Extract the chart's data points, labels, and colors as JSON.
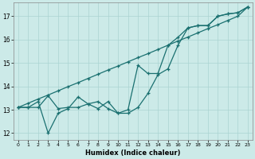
{
  "xlabel": "Humidex (Indice chaleur)",
  "background_color": "#cceae8",
  "grid_color": "#aad4d2",
  "line_color": "#1a7070",
  "xlim": [
    -0.5,
    23.5
  ],
  "ylim": [
    11.7,
    17.6
  ],
  "xticks": [
    0,
    1,
    2,
    3,
    4,
    5,
    6,
    7,
    8,
    9,
    10,
    11,
    12,
    13,
    14,
    15,
    16,
    17,
    18,
    19,
    20,
    21,
    22,
    23
  ],
  "yticks": [
    12,
    13,
    14,
    15,
    16,
    17
  ],
  "line_straight_x": [
    0,
    1,
    2,
    3,
    4,
    5,
    6,
    7,
    8,
    9,
    10,
    11,
    12,
    13,
    14,
    15,
    16,
    17,
    18,
    19,
    20,
    21,
    22,
    23
  ],
  "line_straight_y": [
    13.1,
    13.28,
    13.46,
    13.63,
    13.81,
    13.99,
    14.16,
    14.34,
    14.52,
    14.7,
    14.87,
    15.05,
    15.23,
    15.4,
    15.58,
    15.76,
    15.94,
    16.11,
    16.29,
    16.47,
    16.64,
    16.82,
    17.0,
    17.4
  ],
  "line_wavy1_x": [
    0,
    1,
    2,
    3,
    4,
    5,
    6,
    7,
    8,
    9,
    10,
    11,
    12,
    13,
    14,
    15,
    16,
    17,
    18,
    19,
    20,
    21,
    22,
    23
  ],
  "line_wavy1_y": [
    13.1,
    13.1,
    13.35,
    12.0,
    12.85,
    13.05,
    13.55,
    13.25,
    13.35,
    13.05,
    12.85,
    13.0,
    14.9,
    14.55,
    14.55,
    15.75,
    16.1,
    16.5,
    16.6,
    16.6,
    17.0,
    17.1,
    17.15,
    17.4
  ],
  "line_wavy2_x": [
    0,
    1,
    2,
    3,
    4,
    5,
    6,
    7,
    8,
    9,
    10,
    11,
    12,
    13,
    14,
    15,
    16,
    17,
    18,
    19,
    20,
    21,
    22,
    23
  ],
  "line_wavy2_y": [
    13.1,
    13.1,
    13.1,
    13.6,
    13.05,
    13.1,
    13.1,
    13.25,
    13.05,
    13.35,
    12.85,
    12.85,
    13.1,
    13.7,
    14.5,
    14.75,
    15.75,
    16.5,
    16.6,
    16.6,
    17.0,
    17.1,
    17.15,
    17.4
  ]
}
